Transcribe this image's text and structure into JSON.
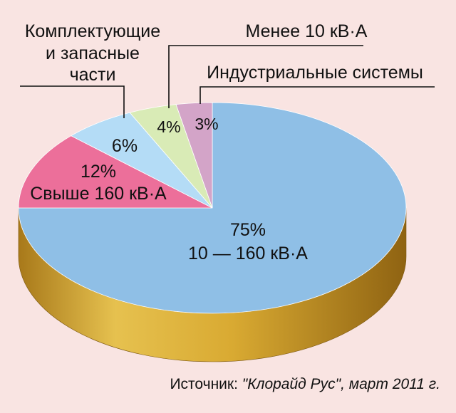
{
  "chart_data": {
    "type": "pie",
    "slices": [
      {
        "name": "10 — 160 кВ·А",
        "value": 75,
        "pct_label": "75%",
        "color": "#8fbfe6"
      },
      {
        "name": "Свыше 160 кВ·А",
        "value": 12,
        "pct_label": "12%",
        "color": "#ec6f9a"
      },
      {
        "name": "Комплектующие и запасные части",
        "value": 6,
        "pct_label": "6%",
        "color": "#b4dcf6"
      },
      {
        "name": "Менее 10 кВ·А",
        "value": 4,
        "pct_label": "4%",
        "color": "#d9ebb6"
      },
      {
        "name": "Индустриальные системы",
        "value": 3,
        "pct_label": "3%",
        "color": "#d3a4c8"
      }
    ],
    "callouts": {
      "components": [
        "Комплектующие",
        "и запасные",
        "части"
      ],
      "under10": "Менее 10 кВ·А",
      "industrial": "Индустриальные системы"
    },
    "rim_color": "#d4a52f",
    "background": "#f9e4e2"
  },
  "source": {
    "prefix": "Источник: ",
    "name": "\"Клорайд Рус\"",
    "suffix": ", март 2011 г."
  }
}
